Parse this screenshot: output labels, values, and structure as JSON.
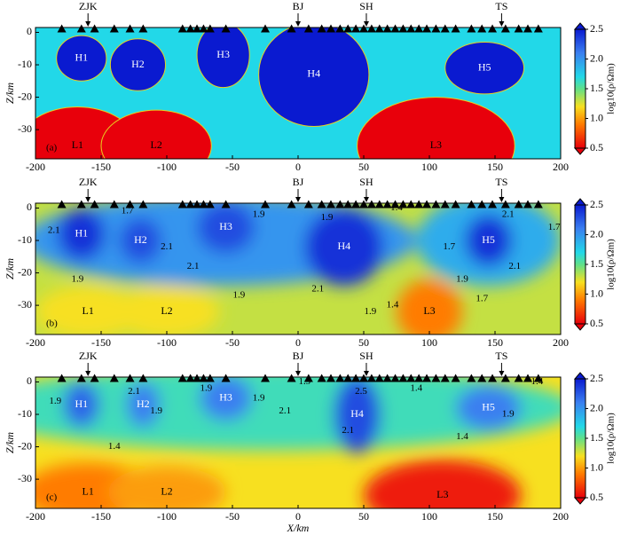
{
  "chart_data": [
    {
      "type": "model",
      "panel_label": "(a)",
      "smooth": false,
      "ylabel": "Z/km",
      "xlim": [
        -200,
        200
      ],
      "xticks": [
        -200,
        -150,
        -100,
        -50,
        0,
        50,
        100,
        150,
        200
      ],
      "ylim": [
        -39,
        1.5
      ],
      "yticks": [
        0,
        -10,
        -20,
        -30
      ],
      "station_labels": [
        {
          "text": "ZJK",
          "x": -160
        },
        {
          "text": "BJ",
          "x": 0
        },
        {
          "text": "SH",
          "x": 52
        },
        {
          "text": "TS",
          "x": 155
        }
      ],
      "stations": [
        -180,
        -165,
        -155,
        -140,
        -128,
        -118,
        -88,
        -82,
        -77,
        -72,
        -67,
        -55,
        -25,
        -5,
        8,
        18,
        25,
        32,
        38,
        44,
        50,
        56,
        62,
        68,
        74,
        80,
        86,
        92,
        98,
        105,
        112,
        120,
        132,
        140,
        148,
        158,
        168,
        175,
        183
      ],
      "background": 1.7,
      "bodies": [
        {
          "name": "H1",
          "value": 2.5,
          "x": -165,
          "z": -8,
          "rx": 19,
          "rz": 7
        },
        {
          "name": "H2",
          "value": 2.5,
          "x": -122,
          "z": -10,
          "rx": 21,
          "rz": 8
        },
        {
          "name": "H3",
          "value": 2.5,
          "x": -57,
          "z": -7,
          "rx": 20,
          "rz": 10
        },
        {
          "name": "H4",
          "value": 2.5,
          "x": 12,
          "z": -13,
          "rx": 42,
          "rz": 16
        },
        {
          "name": "H5",
          "value": 2.5,
          "x": 142,
          "z": -11,
          "rx": 30,
          "rz": 8
        },
        {
          "name": "L1",
          "value": 0.5,
          "x": -168,
          "z": -35,
          "rx": 45,
          "rz": 12
        },
        {
          "name": "L2",
          "value": 0.5,
          "x": -108,
          "z": -35,
          "rx": 42,
          "rz": 11
        },
        {
          "name": "L3",
          "value": 0.5,
          "x": 105,
          "z": -35,
          "rx": 60,
          "rz": 15
        }
      ],
      "contour_labels": [],
      "colorbar": {
        "label": "log10(ρ/Ωm)",
        "lim": [
          0.5,
          2.5
        ],
        "ticks": [
          {
            "value": 2.5,
            "label": "2.5"
          },
          {
            "value": 2,
            "label": "2.0"
          },
          1.5,
          {
            "value": 1,
            "label": "1.0"
          },
          0.5
        ]
      }
    },
    {
      "type": "model",
      "panel_label": "(b)",
      "smooth": true,
      "ylabel": "Z/km",
      "xlim": [
        -200,
        200
      ],
      "xticks": [
        -200,
        -150,
        -100,
        -50,
        0,
        50,
        100,
        150,
        200
      ],
      "ylim": [
        -39,
        1.5
      ],
      "yticks": [
        0,
        -10,
        -20,
        -30
      ],
      "station_labels": [
        {
          "text": "ZJK",
          "x": -160
        },
        {
          "text": "BJ",
          "x": 0
        },
        {
          "text": "SH",
          "x": 52
        },
        {
          "text": "TS",
          "x": 155
        }
      ],
      "stations": [
        -180,
        -165,
        -155,
        -140,
        -128,
        -118,
        -88,
        -82,
        -77,
        -72,
        -67,
        -55,
        -25,
        -5,
        8,
        18,
        25,
        32,
        38,
        44,
        50,
        56,
        62,
        68,
        74,
        80,
        86,
        92,
        98,
        105,
        112,
        120,
        132,
        140,
        148,
        158,
        168,
        175,
        183
      ],
      "background": 1.3,
      "bodies": [
        {
          "value": 2.0,
          "x": -60,
          "z": -10,
          "rx": 150,
          "rz": 14
        },
        {
          "value": 1.9,
          "x": 145,
          "z": -10,
          "rx": 55,
          "rz": 14
        },
        {
          "name": "H1",
          "value": 2.4,
          "x": -165,
          "z": -8,
          "rx": 18,
          "rz": 8
        },
        {
          "name": "H2",
          "value": 2.3,
          "x": -120,
          "z": -10,
          "rx": 16,
          "rz": 7
        },
        {
          "name": "H3",
          "value": 2.3,
          "x": -55,
          "z": -6,
          "rx": 22,
          "rz": 8
        },
        {
          "name": "H4",
          "value": 2.4,
          "x": 35,
          "z": -12,
          "rx": 30,
          "rz": 12
        },
        {
          "name": "H5",
          "value": 2.4,
          "x": 145,
          "z": -10,
          "rx": 18,
          "rz": 8
        },
        {
          "name": "L1",
          "value": 1.2,
          "x": -160,
          "z": -32,
          "rx": 40,
          "rz": 8
        },
        {
          "name": "L2",
          "value": 1.2,
          "x": -100,
          "z": -32,
          "rx": 40,
          "rz": 8
        },
        {
          "name": "L3",
          "value": 0.9,
          "x": 100,
          "z": -32,
          "rx": 25,
          "rz": 10
        }
      ],
      "contour_labels": [
        {
          "value": 2.1,
          "x": -186,
          "z": -7
        },
        {
          "value": 1.7,
          "x": -130,
          "z": -1
        },
        {
          "value": 2.1,
          "x": -100,
          "z": -12
        },
        {
          "value": 1.9,
          "x": -168,
          "z": -22
        },
        {
          "value": 2.1,
          "x": -80,
          "z": -18
        },
        {
          "value": 1.9,
          "x": -30,
          "z": -2
        },
        {
          "value": 1.9,
          "x": -45,
          "z": -27
        },
        {
          "value": 2.1,
          "x": 15,
          "z": -25
        },
        {
          "value": 1.9,
          "x": 55,
          "z": -32
        },
        {
          "value": 1.4,
          "x": 72,
          "z": -30
        },
        {
          "value": 1.9,
          "x": 22,
          "z": -3
        },
        {
          "value": 1.4,
          "x": 75,
          "z": 0
        },
        {
          "value": 1.7,
          "x": 115,
          "z": -12
        },
        {
          "value": 1.9,
          "x": 125,
          "z": -22
        },
        {
          "value": 1.7,
          "x": 140,
          "z": -28
        },
        {
          "value": 2.1,
          "x": 160,
          "z": -2
        },
        {
          "value": 2.1,
          "x": 165,
          "z": -18
        },
        {
          "value": 1.7,
          "x": 195,
          "z": -6
        }
      ],
      "colorbar": {
        "label": "log10(ρ/Ωm)",
        "lim": [
          0.5,
          2.5
        ],
        "ticks": [
          {
            "value": 2.5,
            "label": "2.5"
          },
          {
            "value": 2,
            "label": "2.0"
          },
          1.5,
          {
            "value": 1,
            "label": "1.0"
          },
          0.5
        ]
      }
    },
    {
      "type": "model",
      "panel_label": "(c)",
      "smooth": true,
      "ylabel": "Z/km",
      "xlabel": "X/km",
      "xlim": [
        -200,
        200
      ],
      "xticks": [
        -200,
        -150,
        -100,
        -50,
        0,
        50,
        100,
        150,
        200
      ],
      "ylim": [
        -39,
        1.5
      ],
      "yticks": [
        0,
        -10,
        -20,
        -30
      ],
      "station_labels": [
        {
          "text": "ZJK",
          "x": -160
        },
        {
          "text": "BJ",
          "x": 0
        },
        {
          "text": "SH",
          "x": 52
        },
        {
          "text": "TS",
          "x": 155
        }
      ],
      "stations": [
        -180,
        -165,
        -155,
        -140,
        -128,
        -118,
        -88,
        -82,
        -77,
        -72,
        -67,
        -55,
        -25,
        -5,
        8,
        18,
        25,
        32,
        38,
        44,
        50,
        56,
        62,
        68,
        74,
        80,
        86,
        92,
        98,
        105,
        112,
        120,
        132,
        140,
        148,
        158,
        168,
        175,
        183
      ],
      "background": 1.2,
      "bodies": [
        {
          "value": 1.6,
          "x": -20,
          "z": -8,
          "rx": 230,
          "rz": 13
        },
        {
          "name": "H1",
          "value": 2.2,
          "x": -165,
          "z": -7,
          "rx": 14,
          "rz": 7
        },
        {
          "name": "H2",
          "value": 2.1,
          "x": -118,
          "z": -7,
          "rx": 13,
          "rz": 7
        },
        {
          "name": "H3",
          "value": 2.1,
          "x": -55,
          "z": -5,
          "rx": 20,
          "rz": 7
        },
        {
          "name": "H4",
          "value": 2.3,
          "x": 45,
          "z": -10,
          "rx": 18,
          "rz": 12
        },
        {
          "name": "H5",
          "value": 2.1,
          "x": 145,
          "z": -8,
          "rx": 25,
          "rz": 7
        },
        {
          "name": "L1",
          "value": 0.9,
          "x": -160,
          "z": -34,
          "rx": 50,
          "rz": 9
        },
        {
          "name": "L2",
          "value": 1.0,
          "x": -100,
          "z": -34,
          "rx": 45,
          "rz": 8
        },
        {
          "name": "L3",
          "value": 0.6,
          "x": 110,
          "z": -35,
          "rx": 60,
          "rz": 11
        }
      ],
      "contour_labels": [
        {
          "value": 1.9,
          "x": -185,
          "z": -6
        },
        {
          "value": 2.1,
          "x": -125,
          "z": -3
        },
        {
          "value": 1.9,
          "x": -108,
          "z": -9
        },
        {
          "value": 1.9,
          "x": -70,
          "z": -2
        },
        {
          "value": 1.9,
          "x": -30,
          "z": -5
        },
        {
          "value": 2.1,
          "x": -10,
          "z": -9
        },
        {
          "value": 1.9,
          "x": 5,
          "z": 0
        },
        {
          "value": 1.4,
          "x": -140,
          "z": -20
        },
        {
          "value": 2.5,
          "x": 48,
          "z": -3
        },
        {
          "value": 2.1,
          "x": 38,
          "z": -15
        },
        {
          "value": 1.4,
          "x": 125,
          "z": -17
        },
        {
          "value": 1.4,
          "x": 90,
          "z": -2
        },
        {
          "value": 1.9,
          "x": 160,
          "z": -10
        },
        {
          "value": 1.4,
          "x": 182,
          "z": 0
        }
      ],
      "colorbar": {
        "label": "log10(ρ/Ωm)",
        "lim": [
          0.5,
          2.5
        ],
        "ticks": [
          {
            "value": 2.5,
            "label": "2.5"
          },
          {
            "value": 2,
            "label": "2.0"
          },
          1.5,
          {
            "value": 1,
            "label": "1.0"
          },
          0.5
        ]
      }
    }
  ]
}
